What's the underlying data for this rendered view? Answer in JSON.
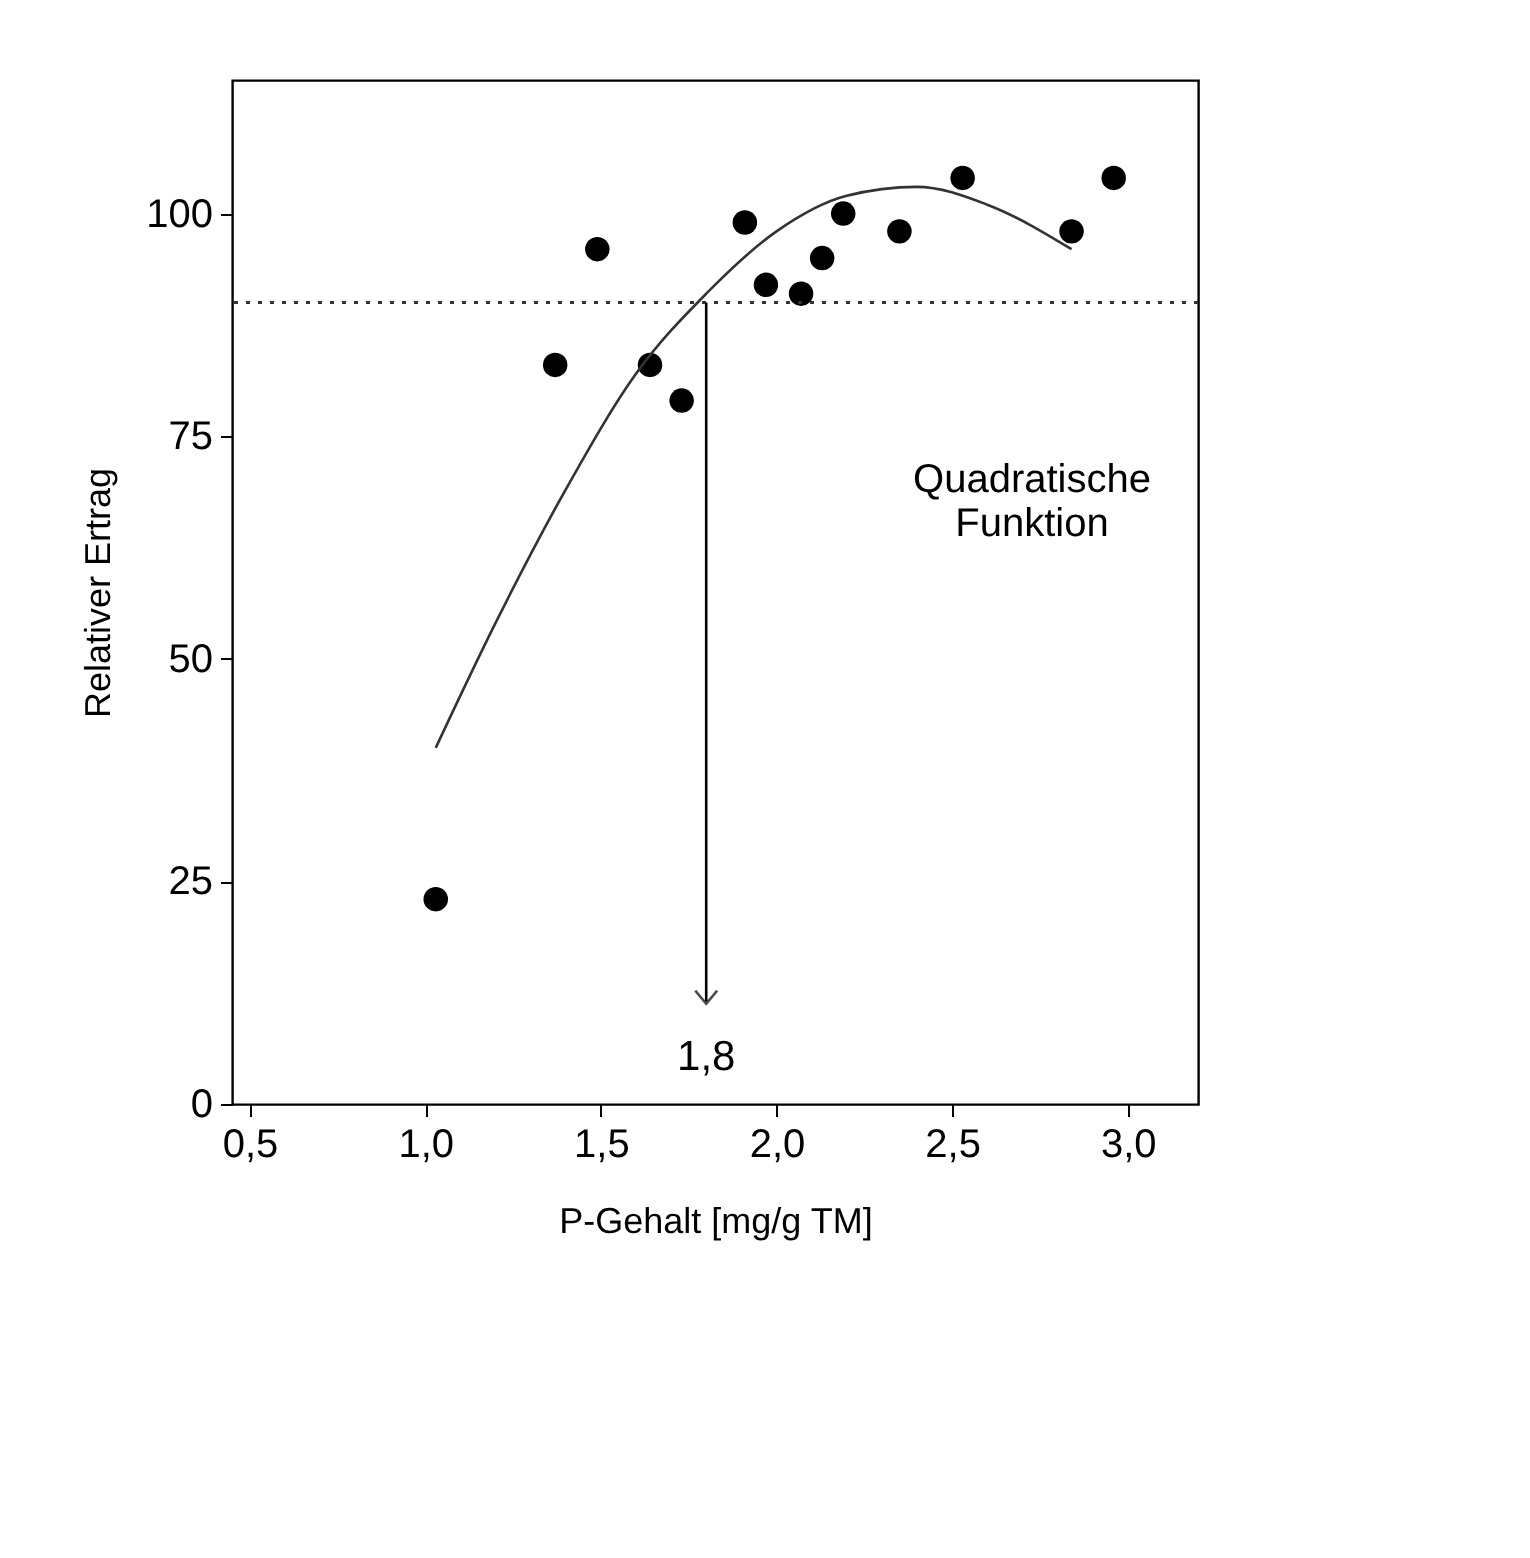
{
  "chart_data": {
    "type": "scatter",
    "xlabel": "P-Gehalt  [mg/g TM]",
    "ylabel": "Relativer Ertrag",
    "xlim": [
      0.45,
      3.2
    ],
    "xticks": [
      {
        "value": 0.5,
        "label": "0,5"
      },
      {
        "value": 1.0,
        "label": "1,0"
      },
      {
        "value": 1.5,
        "label": "1,5"
      },
      {
        "value": 2.0,
        "label": "2,0"
      },
      {
        "value": 2.5,
        "label": "2,5"
      },
      {
        "value": 3.0,
        "label": "3,0"
      }
    ],
    "ylim": [
      0,
      115
    ],
    "yticks": [
      0,
      25,
      50,
      75,
      100
    ],
    "grid": false,
    "series": [
      {
        "marker": "circle",
        "color": "#000000",
        "x": [
          1.03,
          1.37,
          1.49,
          1.64,
          1.73,
          1.91,
          1.97,
          2.07,
          2.13,
          2.19,
          2.35,
          2.53,
          2.84,
          2.96
        ],
        "values": [
          23,
          83,
          96,
          83,
          79,
          99,
          92,
          91,
          95,
          100,
          98,
          104,
          98,
          104
        ]
      },
      {
        "type": "line",
        "color": "#333333",
        "x": [
          1.03,
          1.2,
          1.4,
          1.6,
          1.8,
          2.0,
          2.2,
          2.4,
          2.6,
          2.84
        ],
        "values": [
          40,
          54,
          69,
          82,
          91,
          98,
          102,
          103,
          101,
          96
        ]
      }
    ],
    "ref_lines": [
      {
        "axis": "y",
        "value": 90,
        "line_style": "dotted",
        "color": "#333333"
      }
    ],
    "annotations": [
      {
        "text": "1,8",
        "x": 1.8,
        "y": 90
      },
      "Quadratische\nFunktion"
    ]
  }
}
